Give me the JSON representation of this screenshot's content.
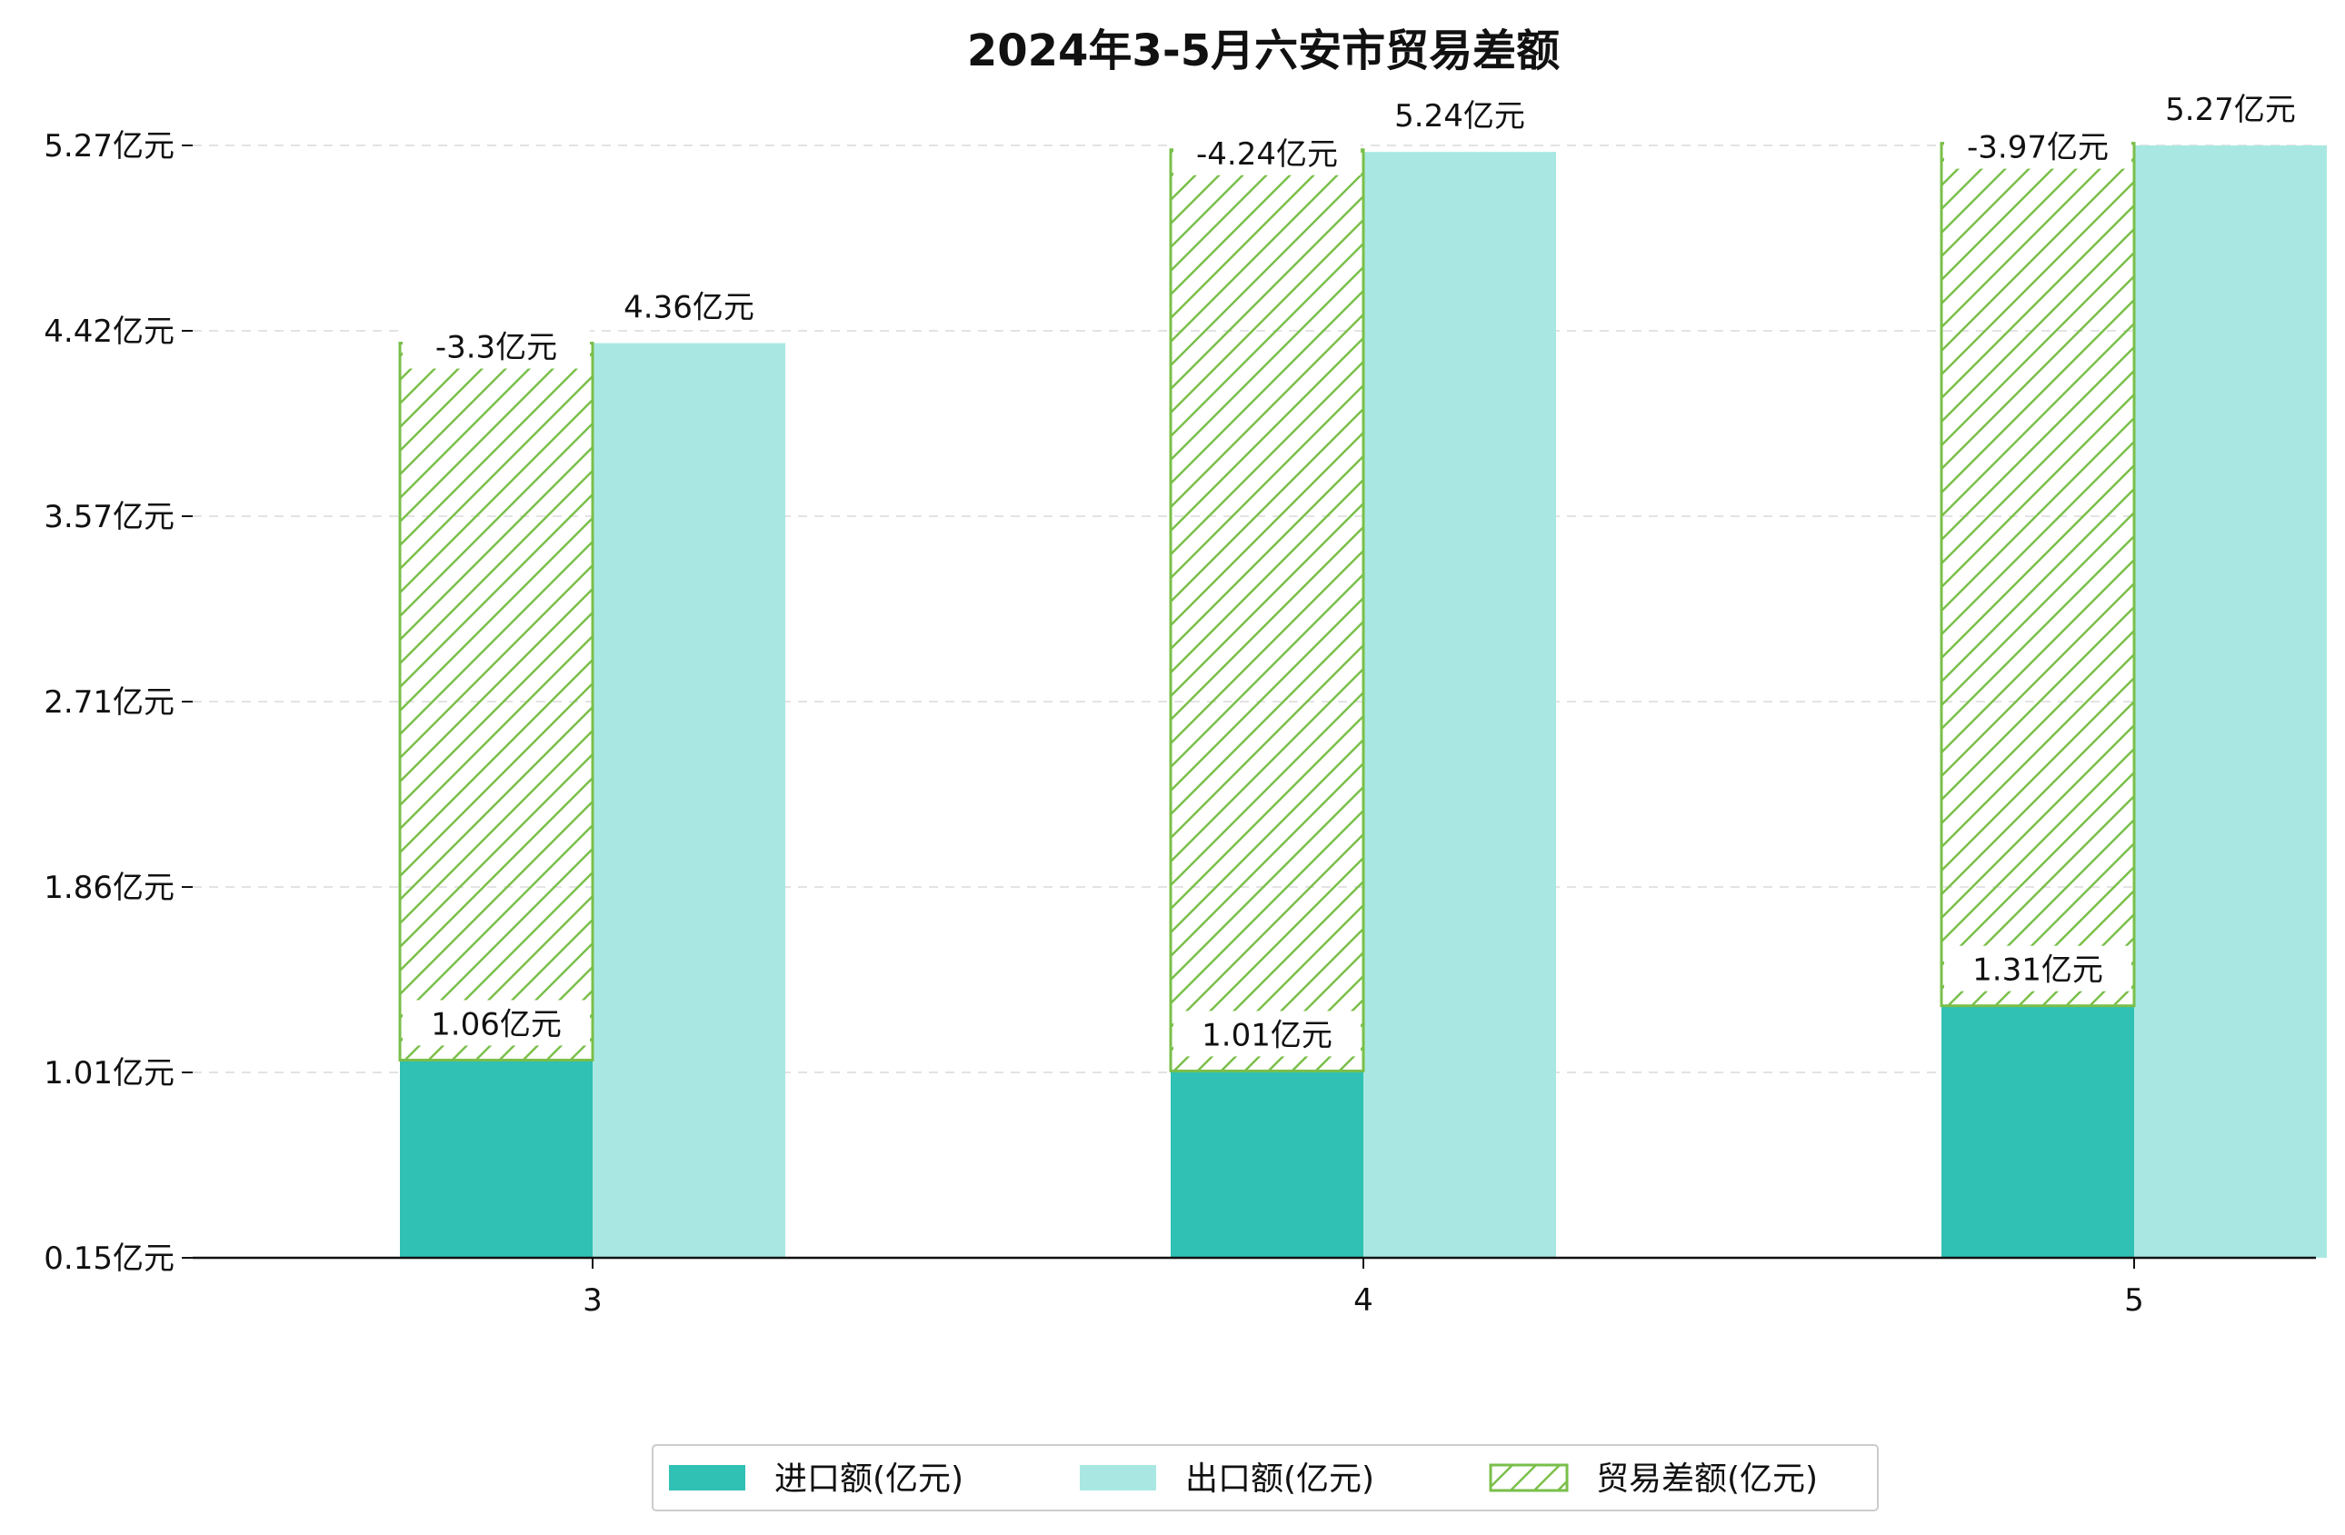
{
  "chart_data": {
    "type": "bar",
    "title": "2024年3-5月六安市贸易差额",
    "categories": [
      "3",
      "4",
      "5"
    ],
    "series": [
      {
        "name": "进口额(亿元)",
        "values": [
          1.06,
          1.01,
          1.31
        ],
        "labels": [
          "1.06亿元",
          "1.01亿元",
          "1.31亿元"
        ],
        "color": "#30C0B4"
      },
      {
        "name": "出口额(亿元)",
        "values": [
          4.36,
          5.24,
          5.27
        ],
        "labels": [
          "4.36亿元",
          "5.24亿元",
          "5.27亿元"
        ],
        "color": "#A9E8E2"
      },
      {
        "name": "贸易差额(亿元)",
        "values": [
          -3.3,
          -4.24,
          -3.97
        ],
        "labels": [
          "-3.3亿元",
          "-4.24亿元",
          "-3.97亿元"
        ],
        "color": "#7ABF4A"
      }
    ],
    "yticks": [
      "0.15亿元",
      "1.01亿元",
      "1.86亿元",
      "2.71亿元",
      "3.57亿元",
      "4.42亿元",
      "5.27亿元"
    ],
    "ylim": [
      0.15,
      5.27
    ],
    "grid": "y-dashed",
    "legend_position": "bottom-center"
  }
}
